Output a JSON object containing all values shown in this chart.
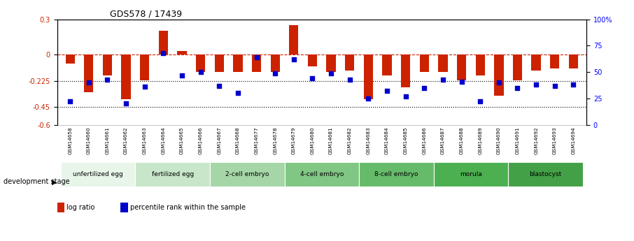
{
  "title": "GDS578 / 17439",
  "samples": [
    "GSM14658",
    "GSM14660",
    "GSM14661",
    "GSM14662",
    "GSM14663",
    "GSM14664",
    "GSM14665",
    "GSM14666",
    "GSM14667",
    "GSM14668",
    "GSM14677",
    "GSM14678",
    "GSM14679",
    "GSM14680",
    "GSM14681",
    "GSM14682",
    "GSM14683",
    "GSM14684",
    "GSM14685",
    "GSM14686",
    "GSM14687",
    "GSM14688",
    "GSM14689",
    "GSM14690",
    "GSM14691",
    "GSM14692",
    "GSM14693",
    "GSM14694"
  ],
  "log_ratio": [
    -0.08,
    -0.32,
    -0.18,
    -0.38,
    -0.22,
    0.2,
    0.03,
    -0.15,
    -0.15,
    -0.15,
    -0.15,
    -0.15,
    0.25,
    -0.1,
    -0.15,
    -0.14,
    -0.38,
    -0.18,
    -0.28,
    -0.15,
    -0.15,
    -0.22,
    -0.18,
    -0.35,
    -0.22,
    -0.14,
    -0.12,
    -0.12
  ],
  "percentile": [
    22,
    40,
    43,
    20,
    36,
    68,
    47,
    50,
    37,
    30,
    64,
    49,
    62,
    44,
    49,
    43,
    25,
    32,
    27,
    35,
    43,
    41,
    22,
    40,
    35,
    38,
    37,
    38
  ],
  "stage_groups": [
    {
      "label": "unfertilized egg",
      "start": 0,
      "end": 4,
      "color": "#e8f5e9"
    },
    {
      "label": "fertilized egg",
      "start": 4,
      "end": 8,
      "color": "#c8e6c9"
    },
    {
      "label": "2-cell embryo",
      "start": 8,
      "end": 12,
      "color": "#a5d6a7"
    },
    {
      "label": "4-cell embryo",
      "start": 12,
      "end": 16,
      "color": "#81c784"
    },
    {
      "label": "8-cell embryo",
      "start": 16,
      "end": 20,
      "color": "#66bb6a"
    },
    {
      "label": "morula",
      "start": 20,
      "end": 24,
      "color": "#4caf50"
    },
    {
      "label": "blastocyst",
      "start": 24,
      "end": 28,
      "color": "#43a047"
    }
  ],
  "ylim": [
    -0.6,
    0.3
  ],
  "yticks_left": [
    -0.6,
    -0.45,
    -0.225,
    0.0,
    0.3
  ],
  "yticks_left_labels": [
    "-0.6",
    "-0.45",
    "-0.225",
    "0",
    "0.3"
  ],
  "yticks_right": [
    0,
    25,
    50,
    75,
    100
  ],
  "yticks_right_labels": [
    "0",
    "25",
    "50",
    "75",
    "100%"
  ],
  "bar_color": "#cc2200",
  "dot_color": "#0000cc",
  "zero_line_color": "#cc2200",
  "dotted_line_color": "#000000",
  "background_color": "#ffffff",
  "legend_bar_label": "log ratio",
  "legend_dot_label": "percentile rank within the sample",
  "dev_stage_label": "development stage"
}
